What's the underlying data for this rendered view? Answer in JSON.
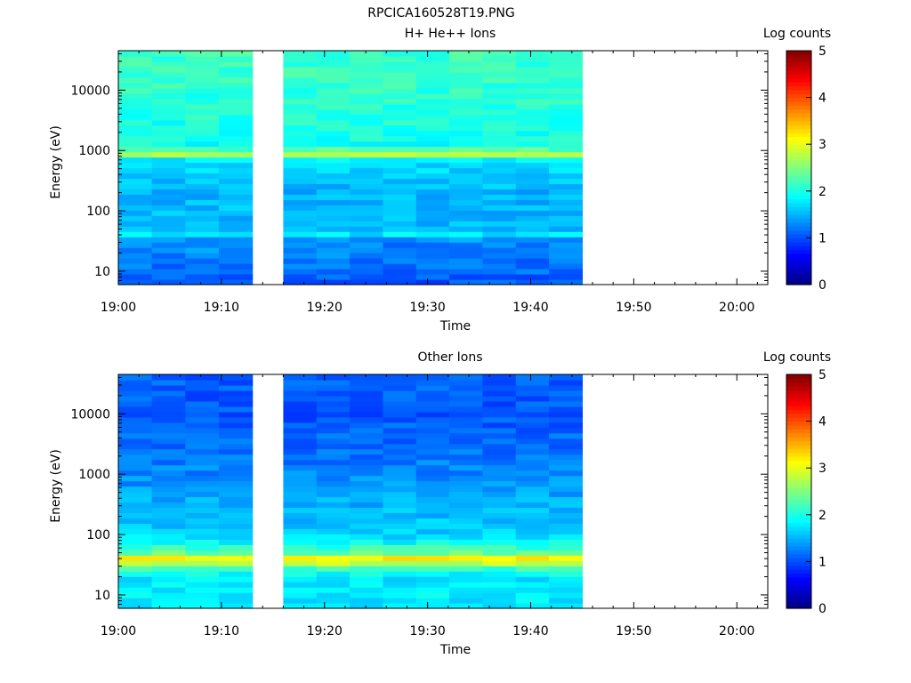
{
  "figure_title": "RPCICA160528T19.PNG",
  "colors": {
    "frame": "#000000",
    "background": "#ffffff",
    "gap": "#ffffff"
  },
  "colormap": "jet",
  "chart_data": [
    {
      "type": "heatmap",
      "title": "H+ He++ Ions",
      "xlabel": "Time",
      "ylabel": "Energy (eV)",
      "yscale": "log",
      "ylim": [
        6,
        45000
      ],
      "xlim": [
        "19:00",
        "20:03"
      ],
      "xticks": [
        "19:00",
        "19:10",
        "19:20",
        "19:30",
        "19:40",
        "19:50",
        "20:00"
      ],
      "yticks": [
        10,
        100,
        1000,
        10000
      ],
      "colorbar": {
        "label": "Log counts",
        "range": [
          0,
          5
        ],
        "ticks": [
          "0",
          "1",
          "2",
          "3",
          "4",
          "5"
        ]
      },
      "data_intervals": [
        [
          "19:00",
          "19:13"
        ],
        [
          "19:16",
          "19:45"
        ]
      ],
      "profile": [
        {
          "energy": 7,
          "log_counts": 1.05
        },
        {
          "energy": 10,
          "log_counts": 1.15
        },
        {
          "energy": 15,
          "log_counts": 1.2
        },
        {
          "energy": 22,
          "log_counts": 1.3
        },
        {
          "energy": 32,
          "log_counts": 1.25
        },
        {
          "energy": 40,
          "log_counts": 1.8
        },
        {
          "energy": 50,
          "log_counts": 1.55
        },
        {
          "energy": 70,
          "log_counts": 1.5
        },
        {
          "energy": 100,
          "log_counts": 1.55
        },
        {
          "energy": 200,
          "log_counts": 1.5
        },
        {
          "energy": 400,
          "log_counts": 1.65
        },
        {
          "energy": 700,
          "log_counts": 1.75
        },
        {
          "energy": 880,
          "log_counts": 2.8
        },
        {
          "energy": 1200,
          "log_counts": 1.95
        },
        {
          "energy": 3000,
          "log_counts": 2.0
        },
        {
          "energy": 10000,
          "log_counts": 2.1
        },
        {
          "energy": 30000,
          "log_counts": 2.15
        }
      ]
    },
    {
      "type": "heatmap",
      "title": "Other Ions",
      "xlabel": "Time",
      "ylabel": "Energy (eV)",
      "yscale": "log",
      "ylim": [
        6,
        45000
      ],
      "xlim": [
        "19:00",
        "20:03"
      ],
      "xticks": [
        "19:00",
        "19:10",
        "19:20",
        "19:30",
        "19:40",
        "19:50",
        "20:00"
      ],
      "yticks": [
        10,
        100,
        1000,
        10000
      ],
      "colorbar": {
        "label": "Log counts",
        "range": [
          0,
          5
        ],
        "ticks": [
          "0",
          "1",
          "2",
          "3",
          "4",
          "5"
        ]
      },
      "data_intervals": [
        [
          "19:00",
          "19:13"
        ],
        [
          "19:16",
          "19:45"
        ]
      ],
      "profile": [
        {
          "energy": 7,
          "log_counts": 1.75
        },
        {
          "energy": 10,
          "log_counts": 1.8
        },
        {
          "energy": 20,
          "log_counts": 1.75
        },
        {
          "energy": 30,
          "log_counts": 2.3
        },
        {
          "energy": 35,
          "log_counts": 3.0
        },
        {
          "energy": 42,
          "log_counts": 3.2
        },
        {
          "energy": 50,
          "log_counts": 2.4
        },
        {
          "energy": 70,
          "log_counts": 1.95
        },
        {
          "energy": 100,
          "log_counts": 1.65
        },
        {
          "energy": 300,
          "log_counts": 1.5
        },
        {
          "energy": 1000,
          "log_counts": 1.3
        },
        {
          "energy": 3000,
          "log_counts": 1.15
        },
        {
          "energy": 10000,
          "log_counts": 1.05
        },
        {
          "energy": 30000,
          "log_counts": 1.1
        }
      ]
    }
  ]
}
